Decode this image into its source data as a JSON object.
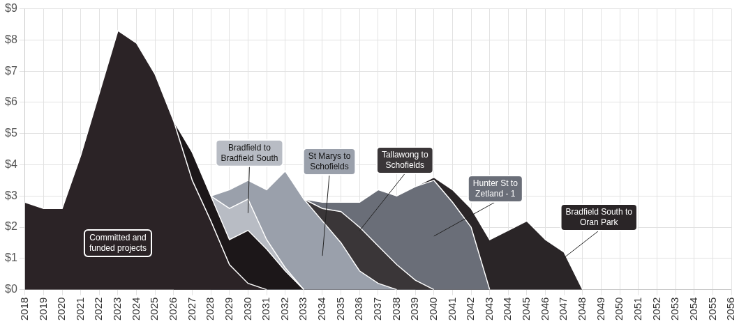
{
  "chart_data": {
    "type": "area",
    "stacked": true,
    "grid": true,
    "legend": false,
    "categories": [
      "2018",
      "2019",
      "2020",
      "2021",
      "2022",
      "2023",
      "2024",
      "2025",
      "2026",
      "2027",
      "2028",
      "2029",
      "2030",
      "2031",
      "2032",
      "2033",
      "2034",
      "2035",
      "2036",
      "2037",
      "2038",
      "2039",
      "2040",
      "2041",
      "2042",
      "2043",
      "2044",
      "2045",
      "2046",
      "2047",
      "2048",
      "2049",
      "2050",
      "2051",
      "2052",
      "2053",
      "2054",
      "2055",
      "2056"
    ],
    "ylim": [
      0,
      9
    ],
    "yticks": [
      {
        "value": 0,
        "label": "$0"
      },
      {
        "value": 1,
        "label": "$1"
      },
      {
        "value": 2,
        "label": "$2"
      },
      {
        "value": 3,
        "label": "$3"
      },
      {
        "value": 4,
        "label": "$4"
      },
      {
        "value": 5,
        "label": "$5"
      },
      {
        "value": 6,
        "label": "$6"
      },
      {
        "value": 7,
        "label": "$7"
      },
      {
        "value": 8,
        "label": "$8"
      },
      {
        "value": 9,
        "label": "$9"
      }
    ],
    "series": [
      {
        "name": "Committed and funded projects",
        "color": "#2b2326",
        "values": [
          2.8,
          2.6,
          2.6,
          4.3,
          6.3,
          8.3,
          7.9,
          6.9,
          5.4,
          3.5,
          2.2,
          0.8,
          0.2,
          0,
          null,
          null,
          null,
          null,
          null,
          null,
          null,
          null,
          null,
          null,
          null,
          null,
          null,
          null,
          null,
          null,
          null,
          null,
          null,
          null,
          null,
          null,
          null,
          null,
          null
        ]
      },
      {
        "color": "#1c1719",
        "values": [
          null,
          null,
          null,
          null,
          null,
          null,
          null,
          null,
          0,
          0.9,
          0.8,
          0.8,
          1.7,
          1.3,
          0.6,
          0,
          null,
          null,
          null,
          null,
          null,
          null,
          null,
          null,
          null,
          null,
          null,
          null,
          null,
          null,
          null,
          null,
          null,
          null,
          null,
          null,
          null,
          null,
          null
        ]
      },
      {
        "name": "Bradfield to Bradfield South",
        "color": "#b8bcc4",
        "values": [
          null,
          null,
          null,
          null,
          null,
          null,
          null,
          null,
          null,
          null,
          0,
          1.0,
          1.0,
          0.3,
          0.1,
          0,
          null,
          null,
          null,
          null,
          null,
          null,
          null,
          null,
          null,
          null,
          null,
          null,
          null,
          null,
          null,
          null,
          null,
          null,
          null,
          null,
          null,
          null,
          null
        ]
      },
      {
        "name": "St Marys to Schofields",
        "color": "#9aa0ab",
        "values": [
          null,
          null,
          null,
          null,
          null,
          null,
          null,
          null,
          null,
          null,
          0,
          0.6,
          0.6,
          1.6,
          3.1,
          2.9,
          2.2,
          1.5,
          0.6,
          0.2,
          0,
          null,
          null,
          null,
          null,
          null,
          null,
          null,
          null,
          null,
          null,
          null,
          null,
          null,
          null,
          null,
          null,
          null,
          null
        ]
      },
      {
        "name": "Tallawong to Schofields",
        "color": "#3a3638",
        "values": [
          null,
          null,
          null,
          null,
          null,
          null,
          null,
          null,
          null,
          null,
          null,
          null,
          null,
          null,
          null,
          0,
          0.4,
          1.0,
          1.4,
          1.2,
          0.8,
          0.3,
          0,
          null,
          null,
          null,
          null,
          null,
          null,
          null,
          null,
          null,
          null,
          null,
          null,
          null,
          null,
          null,
          null
        ]
      },
      {
        "name": "Hunter St to Zetland - 1",
        "color": "#6a6e78",
        "values": [
          null,
          null,
          null,
          null,
          null,
          null,
          null,
          null,
          null,
          null,
          null,
          null,
          null,
          null,
          null,
          0,
          0.2,
          0.3,
          0.8,
          1.8,
          2.2,
          3.0,
          3.5,
          2.8,
          2.0,
          0,
          null,
          null,
          null,
          null,
          null,
          null,
          null,
          null,
          null,
          null,
          null,
          null,
          null
        ]
      },
      {
        "name": "Bradfield South to Oran Park",
        "color": "#2a2527",
        "values": [
          null,
          null,
          null,
          null,
          null,
          null,
          null,
          null,
          null,
          null,
          null,
          null,
          null,
          null,
          null,
          null,
          null,
          null,
          null,
          null,
          null,
          0,
          0.1,
          0.4,
          0.6,
          1.6,
          1.9,
          2.2,
          1.6,
          1.2,
          0,
          null,
          null,
          null,
          null,
          null,
          null,
          null,
          null
        ]
      }
    ]
  }
}
